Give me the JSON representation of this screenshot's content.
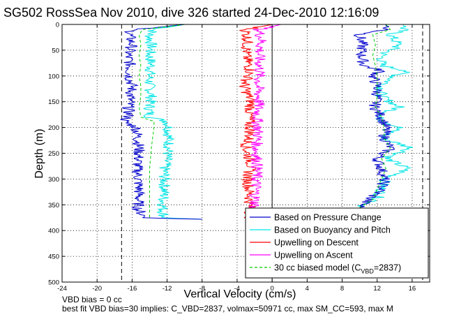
{
  "chart_data": {
    "type": "line",
    "title": "SG502 RossSea Nov 2010, dive 326 started 24-Dec-2010 12:16:09",
    "xlabel": "Vertical Velocity (cm/s)",
    "ylabel": "Depth (m)",
    "xlim": [
      -24,
      18
    ],
    "ylim": [
      0,
      500
    ],
    "y_reversed": true,
    "grid": true,
    "x_ticks": [
      "-24",
      "-20",
      "-16",
      "-12",
      "-8",
      "-4",
      "0",
      "4",
      "8",
      "12",
      "16"
    ],
    "y_ticks": [
      "0",
      "50",
      "100",
      "150",
      "200",
      "250",
      "300",
      "350",
      "400",
      "450",
      "500"
    ],
    "vertical_reference_lines": [
      -17.2,
      17.2
    ],
    "legend": {
      "placement": "bottom-right",
      "entries": [
        {
          "label": "Based on Pressure Change",
          "color": "#0000cc",
          "style": "solid"
        },
        {
          "label": "Based on Buoyancy and Pitch",
          "color": "#00e5e5",
          "style": "solid"
        },
        {
          "label": "Upwelling on Descent",
          "color": "#ff0000",
          "style": "solid"
        },
        {
          "label": "Upwelling on Ascent",
          "color": "#ff00ff",
          "style": "solid"
        },
        {
          "label": "30 cc biased model (C",
          "sub": "VBD",
          "suffix": "=2837)",
          "color": "#00cc00",
          "style": "dashed"
        }
      ]
    },
    "series": [
      {
        "name": "Based on Pressure Change",
        "color": "#0000cc",
        "segments": [
          {
            "depth": [
              0,
              10,
              20,
              40,
              60,
              80,
              100,
              120,
              140,
              160,
              180,
              188,
              200,
              240,
              280,
              320,
              360,
              375,
              378
            ],
            "value": [
              -10,
              -16,
              -16.3,
              -16,
              -16.5,
              -16.2,
              -16.3,
              -16,
              -16.2,
              -16.4,
              -16.4,
              -17,
              -15.5,
              -15.2,
              -15.4,
              -15.2,
              -15.3,
              -14.5,
              -8
            ]
          },
          {
            "depth": [
              0,
              10,
              20,
              40,
              60,
              80,
              90,
              100,
              120,
              140,
              160,
              180,
              200,
              220,
              240,
              260,
              280,
              300,
              320,
              340,
              355
            ],
            "value": [
              13,
              13,
              10,
              10.3,
              10.2,
              10.5,
              12.5,
              11.5,
              12,
              12,
              11.7,
              12.5,
              13,
              12.8,
              13.5,
              12,
              12.5,
              12.8,
              12.5,
              11,
              10
            ]
          }
        ]
      },
      {
        "name": "Based on Buoyancy and Pitch",
        "color": "#00e5e5",
        "segments": [
          {
            "depth": [
              0,
              10,
              20,
              40,
              60,
              80,
              100,
              120,
              140,
              160,
              180,
              188,
              200,
              240,
              280,
              320,
              360,
              375,
              378
            ],
            "value": [
              -10,
              -13.5,
              -14,
              -13.8,
              -14,
              -13.8,
              -14,
              -14,
              -13.8,
              -14,
              -14,
              -12,
              -11.8,
              -11.8,
              -12.3,
              -12.3,
              -12.5,
              -12.3,
              -8
            ]
          },
          {
            "depth": [
              0,
              10,
              20,
              40,
              60,
              80,
              90,
              100,
              120,
              140,
              160,
              180,
              200,
              220,
              240,
              260,
              280,
              300,
              320,
              340,
              355
            ],
            "value": [
              15,
              15,
              13.5,
              14.5,
              12.5,
              12.5,
              15.5,
              14,
              12.5,
              12.5,
              14.5,
              12,
              14.5,
              12.5,
              16,
              13,
              15.5,
              13,
              12.5,
              12,
              10
            ]
          }
        ]
      },
      {
        "name": "Upwelling on Descent",
        "color": "#ff0000",
        "segments": [
          {
            "depth": [
              0,
              10,
              30,
              60,
              90,
              120,
              150,
              180,
              210,
              240,
              270,
              300,
              330,
              360,
              378
            ],
            "value": [
              0,
              -3,
              -2.8,
              -3,
              -2.5,
              -3.2,
              -2.4,
              -2.6,
              -2.5,
              -3,
              -2.4,
              -2.8,
              -2.6,
              -2.5,
              -2.5
            ]
          }
        ]
      },
      {
        "name": "Upwelling on Ascent",
        "color": "#ff00ff",
        "segments": [
          {
            "depth": [
              0,
              10,
              30,
              60,
              90,
              120,
              150,
              180,
              210,
              240,
              270,
              300,
              330,
              355
            ],
            "value": [
              1,
              -1.5,
              -1.2,
              -1.5,
              -1.4,
              -1.6,
              -1.5,
              -1.7,
              -1.6,
              -1.8,
              -1.7,
              -1.8,
              -1.9,
              -2.0
            ]
          }
        ]
      },
      {
        "name": "30 cc biased model (C_VBD=2837)",
        "color": "#00cc00",
        "dashed": true,
        "segments": [
          {
            "depth": [
              0,
              10,
              20,
              40,
              60,
              80,
              100,
              120,
              140,
              160,
              180,
              188,
              200,
              240,
              280,
              320,
              360,
              375
            ],
            "value": [
              -10,
              -14.8,
              -15.2,
              -15,
              -15.2,
              -15,
              -15.2,
              -15,
              -15,
              -15.2,
              -15,
              -13.5,
              -13.5,
              -13.8,
              -14,
              -14,
              -14,
              -14
            ]
          },
          {
            "depth": [
              0,
              10,
              20,
              40,
              60,
              80,
              100,
              120,
              140,
              160,
              180,
              200,
              220,
              240,
              260,
              280,
              300,
              320,
              340,
              355
            ],
            "value": [
              13,
              13.5,
              11.5,
              11.8,
              11.5,
              11.8,
              12,
              12,
              12,
              11.8,
              12.5,
              12.8,
              12.8,
              13.5,
              12.5,
              13,
              12.5,
              12,
              11.5,
              10
            ]
          }
        ]
      }
    ]
  },
  "footer": {
    "line1": "VBD bias = 0 cc",
    "line2": "best fit VBD bias=30 implies: C_VBD=2837, volmax=50971 cc, max SM_CC=593, max M"
  }
}
